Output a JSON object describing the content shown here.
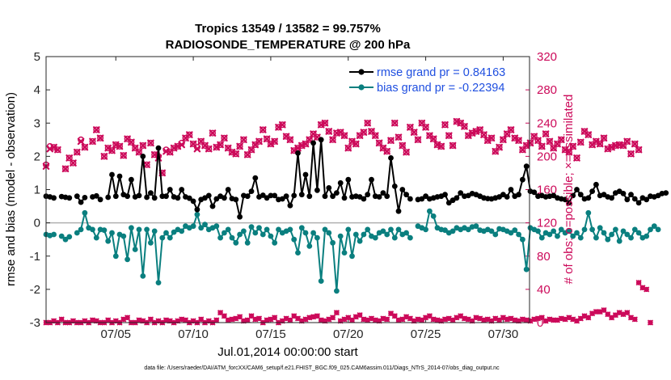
{
  "chart_data": {
    "type": "line",
    "title": "Tropics 13549 / 13582 = 99.757%",
    "subtitle": "RADIOSONDE_TEMPERATURE @ 200 hPa",
    "xlabel": "Jul.01,2014 00:00:00 start",
    "ylabel_left": "rmse and bias (model - observation)",
    "ylabel_right": "# of obs: o=possible; ×=assimilated",
    "footnote": "data file: /Users/raeder/DAI/ATM_forcXX/CAM6_setup/f.e21.FHIST_BGC.f09_025.CAM6assim.011/Diags_NTrS_2014-07/obs_diag_output.nc",
    "xlim": [
      0.5,
      31.7
    ],
    "ylim_left": [
      -3,
      5
    ],
    "ylim_right": [
      0,
      320
    ],
    "x_tick_labels": [
      "07/05",
      "07/10",
      "07/15",
      "07/20",
      "07/25",
      "07/30"
    ],
    "x_tick_values": [
      5,
      10,
      15,
      20,
      25,
      30
    ],
    "y_left_ticks": [
      -3,
      -2,
      -1,
      0,
      1,
      2,
      3,
      4,
      5
    ],
    "y_right_ticks": [
      0,
      40,
      80,
      120,
      160,
      200,
      240,
      280,
      320
    ],
    "x_start": 0.5,
    "x_step": 0.25,
    "legend": [
      "rmse grand pr = 0.84163",
      "bias grand pr = -0.22394"
    ],
    "colors": {
      "rmse": "#000000",
      "bias": "#0a7f7f",
      "obs": "#cc0a5a",
      "legend_text": "#1f4fe0",
      "zero_line": "#b0b0b0"
    },
    "series": [
      {
        "name": "rmse grand pr = 0.84163",
        "values": [
          0.8,
          0.78,
          0.75,
          null,
          0.79,
          0.77,
          0.75,
          null,
          0.8,
          0.62,
          0.76,
          null,
          0.78,
          0.81,
          0.7,
          null,
          0.77,
          1.45,
          0.8,
          1.4,
          0.85,
          0.8,
          1.3,
          0.78,
          0.82,
          2.0,
          0.77,
          0.9,
          0.75,
          2.25,
          0.8,
          0.8,
          1.0,
          0.78,
          0.75,
          1.0,
          0.78,
          0.74,
          0.65,
          0.4,
          0.7,
          0.75,
          0.82,
          0.5,
          0.72,
          0.8,
          0.75,
          1.0,
          0.73,
          0.7,
          0.18,
          0.82,
          0.8,
          0.95,
          1.35,
          0.78,
          0.83,
          0.75,
          0.82,
          0.82,
          0.7,
          0.72,
          0.8,
          0.52,
          0.82,
          2.1,
          0.85,
          1.45,
          0.8,
          2.4,
          0.98,
          2.5,
          0.8,
          1.05,
          0.8,
          0.9,
          1.2,
          0.75,
          1.3,
          0.78,
          0.8,
          0.78,
          0.72,
          0.85,
          1.3,
          0.8,
          0.78,
          0.9,
          0.8,
          1.95,
          1.1,
          0.35,
          1.0,
          0.85,
          0.72,
          null,
          0.7,
          0.72,
          0.8,
          0.72,
          0.75,
          0.78,
          0.8,
          0.85,
          0.6,
          0.68,
          0.75,
          0.9,
          0.8,
          0.82,
          0.88,
          0.85,
          0.8,
          0.75,
          0.73,
          0.72,
          0.75,
          0.78,
          0.85,
          0.78,
          1.0,
          0.8,
          0.85,
          1.3,
          1.7,
          0.95,
          0.92,
          0.8,
          0.82,
          0.78,
          0.8,
          0.82,
          0.75,
          0.72,
          0.7,
          0.6,
          0.82,
          1.0,
          0.85,
          0.72,
          0.75,
          0.95,
          1.15,
          0.82,
          0.85,
          0.78,
          0.75,
          0.9,
          0.95,
          0.88,
          0.7,
          0.85,
          0.72,
          0.6,
          0.75,
          0.7,
          0.8,
          0.78,
          0.82,
          0.88,
          0.9
        ]
      },
      {
        "name": "bias grand pr = -0.22394",
        "values": [
          -0.35,
          -0.38,
          -0.35,
          null,
          -0.4,
          -0.5,
          -0.42,
          null,
          -0.3,
          -0.2,
          0.3,
          -0.15,
          -0.2,
          -0.45,
          -0.2,
          -0.22,
          -0.55,
          -0.3,
          -1.0,
          -0.35,
          -0.4,
          -1.1,
          -0.15,
          -0.8,
          -0.2,
          -1.6,
          -0.2,
          -0.6,
          -0.25,
          -1.8,
          -0.45,
          -0.3,
          -0.45,
          -0.28,
          -0.2,
          -0.25,
          -0.1,
          -0.15,
          -0.1,
          0.25,
          -0.15,
          -0.05,
          -0.2,
          -0.15,
          -0.1,
          -0.45,
          -0.3,
          -0.2,
          -0.45,
          -0.6,
          -0.35,
          -0.25,
          -0.6,
          -0.12,
          -0.3,
          -0.15,
          -0.35,
          -0.2,
          -0.4,
          -0.6,
          -0.2,
          -0.3,
          -0.25,
          -0.2,
          -0.5,
          -0.9,
          -0.15,
          -0.3,
          -0.7,
          -0.3,
          -0.45,
          -1.75,
          -0.2,
          -0.3,
          -0.6,
          -2.05,
          -0.4,
          -0.9,
          -0.2,
          -1.0,
          -0.35,
          -0.55,
          -0.35,
          -0.2,
          -0.4,
          -0.45,
          -0.3,
          -0.25,
          -0.35,
          -0.2,
          -0.45,
          -0.2,
          -0.35,
          -0.3,
          -0.45,
          null,
          -0.1,
          -0.15,
          -0.2,
          0.35,
          0.2,
          -0.15,
          -0.2,
          -0.22,
          -0.3,
          -0.25,
          -0.15,
          -0.2,
          -0.15,
          -0.2,
          -0.12,
          -0.1,
          -0.22,
          -0.25,
          -0.2,
          -0.25,
          -0.35,
          -0.18,
          -0.2,
          -0.25,
          -0.3,
          -0.22,
          -0.35,
          -0.5,
          -1.4,
          -0.15,
          -0.2,
          -0.25,
          -0.45,
          -0.3,
          -0.35,
          -0.25,
          -0.4,
          -0.2,
          -0.3,
          -0.25,
          -0.4,
          -0.3,
          -0.45,
          -0.2,
          0.3,
          -0.2,
          -0.45,
          -0.15,
          -0.3,
          -0.5,
          -0.35,
          -0.2,
          -0.55,
          -0.25,
          -0.35,
          -0.45,
          -0.2,
          -0.3,
          -0.45,
          -0.4,
          -0.2,
          -0.1,
          -0.2
        ]
      },
      {
        "name": "obs possible (o)",
        "values": [
          190,
          212,
          211,
          208,
          null,
          185,
          198,
          192,
          205,
          220,
          211,
          null,
          218,
          232,
          222,
          200,
          210,
          207,
          214,
          212,
          201,
          221,
          217,
          210,
          205,
          213,
          190,
          216,
          202,
          200,
          180,
          208,
          205,
          210,
          212,
          216,
          222,
          226,
          215,
          211,
          218,
          213,
          209,
          228,
          211,
          214,
          222,
          210,
          205,
          203,
          212,
          220,
          202,
          208,
          214,
          218,
          232,
          221,
          215,
          218,
          235,
          238,
          224,
          220,
          207,
          210,
          213,
          215,
          220,
          227,
          223,
          238,
          240,
          230,
          220,
          228,
          229,
          225,
          210,
          218,
          215,
          225,
          229,
          240,
          230,
          225,
          216,
          210,
          206,
          219,
          240,
          223,
          213,
          205,
          235,
          229,
          220,
          240,
          235,
          225,
          221,
          214,
          212,
          238,
          225,
          213,
          242,
          240,
          236,
          225,
          228,
          230,
          232,
          226,
          219,
          222,
          206,
          211,
          220,
          227,
          232,
          222,
          219,
          208,
          213,
          216,
          224,
          219,
          212,
          227,
          218,
          210,
          215,
          220,
          208,
          205,
          212,
          198,
          217,
          230,
          226,
          214,
          218,
          215,
          222,
          209,
          211,
          213,
          214,
          213,
          218,
          203,
          215,
          208
        ]
      },
      {
        "name": "obs assimilated (×)",
        "values": [
          188,
          209,
          211,
          208,
          null,
          185,
          198,
          192,
          205,
          218,
          211,
          null,
          218,
          232,
          222,
          200,
          210,
          207,
          214,
          212,
          201,
          221,
          217,
          210,
          205,
          213,
          190,
          216,
          202,
          198,
          180,
          206,
          205,
          210,
          212,
          214,
          222,
          226,
          215,
          209,
          218,
          213,
          209,
          228,
          211,
          214,
          222,
          210,
          205,
          203,
          212,
          220,
          202,
          208,
          214,
          218,
          232,
          221,
          215,
          218,
          235,
          238,
          224,
          220,
          207,
          210,
          213,
          215,
          220,
          227,
          223,
          238,
          240,
          230,
          220,
          228,
          229,
          225,
          210,
          218,
          215,
          225,
          229,
          240,
          230,
          225,
          216,
          210,
          206,
          219,
          240,
          223,
          213,
          205,
          235,
          229,
          220,
          240,
          235,
          225,
          221,
          214,
          212,
          238,
          225,
          213,
          242,
          240,
          236,
          225,
          228,
          230,
          232,
          226,
          219,
          222,
          206,
          211,
          220,
          227,
          232,
          222,
          219,
          208,
          213,
          216,
          224,
          219,
          212,
          227,
          218,
          210,
          215,
          220,
          208,
          205,
          212,
          198,
          217,
          230,
          226,
          214,
          218,
          215,
          222,
          209,
          211,
          213,
          214,
          213,
          218,
          203,
          215,
          208
        ]
      },
      {
        "name": "obs rejected (bottom row)",
        "values": [
          0,
          0,
          2,
          0,
          4,
          0,
          0,
          2,
          0,
          0,
          2,
          0,
          3,
          2,
          0,
          0,
          3,
          0,
          2,
          0,
          4,
          6,
          0,
          0,
          3,
          2,
          0,
          4,
          0,
          2,
          0,
          3,
          2,
          0,
          2,
          4,
          3,
          0,
          2,
          0,
          4,
          0,
          2,
          0,
          3,
          12,
          8,
          3,
          4,
          5,
          7,
          2,
          3,
          8,
          4,
          5,
          0,
          3,
          4,
          6,
          0,
          2,
          5,
          3,
          8,
          5,
          2,
          4,
          6,
          7,
          8,
          3,
          2,
          4,
          6,
          12,
          2,
          4,
          6,
          3,
          7,
          9,
          4,
          3,
          5,
          3,
          2,
          5,
          4,
          11,
          8,
          3,
          4,
          7,
          5,
          2,
          4,
          3,
          6,
          8,
          4,
          3,
          2,
          4,
          5,
          3,
          6,
          8,
          5,
          4,
          2,
          6,
          5,
          3,
          4,
          2,
          5,
          3,
          6,
          4,
          5,
          3,
          2,
          4,
          3,
          2,
          4,
          5,
          6,
          2,
          4,
          3,
          3,
          5,
          4,
          6,
          4,
          2,
          5,
          8,
          6,
          11,
          13,
          13,
          15,
          10,
          6,
          9,
          12,
          10,
          12,
          6,
          4,
          48,
          42,
          40,
          0
        ]
      }
    ]
  }
}
